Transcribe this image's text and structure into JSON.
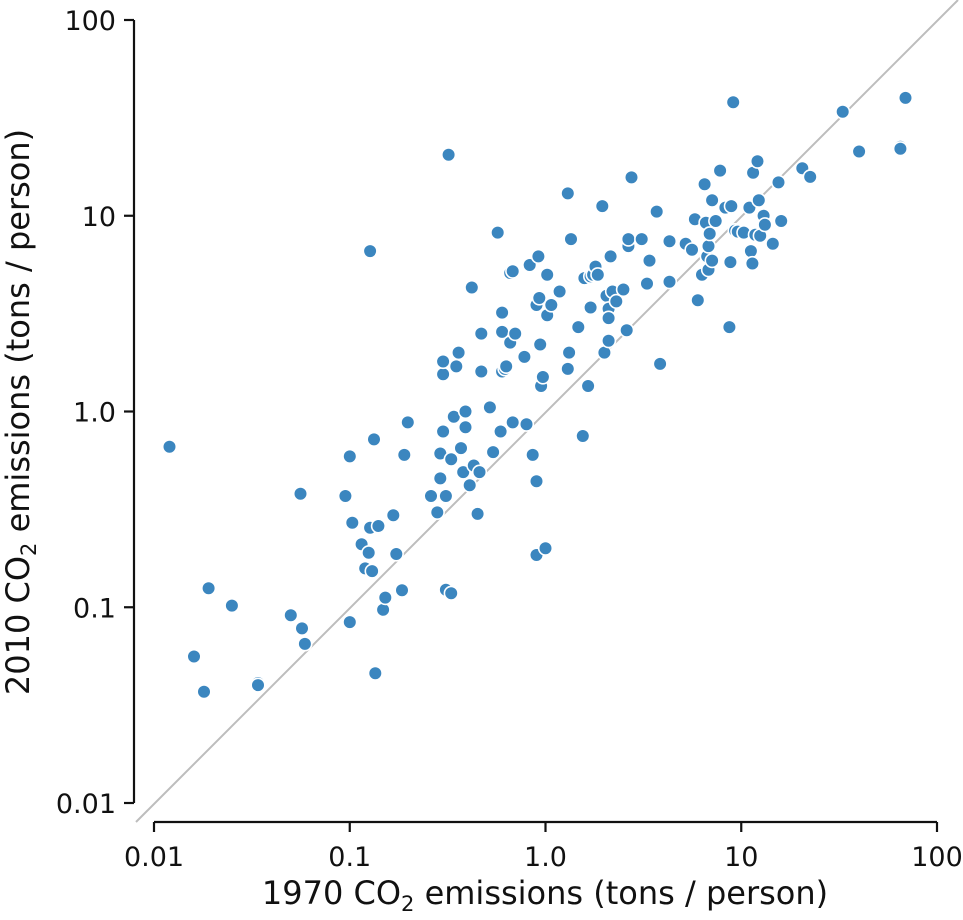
{
  "chart_data": {
    "type": "scatter",
    "title": "",
    "xlabel": {
      "pre": "1970 CO",
      "sub": "2",
      "post": " emissions (tons / person)"
    },
    "ylabel": {
      "pre": "2010 CO",
      "sub": "2",
      "post": " emissions (tons / person)"
    },
    "xscale": "log",
    "yscale": "log",
    "xlim": [
      0.01,
      100
    ],
    "ylim": [
      0.01,
      100
    ],
    "grid": false,
    "x_ticks": [
      0.01,
      0.1,
      1,
      10,
      100
    ],
    "x_tick_labels": [
      "0.01",
      "0.1",
      "1.0",
      "10",
      "100"
    ],
    "y_ticks": [
      0.01,
      0.1,
      1,
      10,
      100
    ],
    "y_tick_labels": [
      "0.01",
      "0.1",
      "1.0",
      "10",
      "100"
    ],
    "reference_line": {
      "type": "identity",
      "label": "y = x",
      "color": "#bdbdbd"
    },
    "point_color": "#3b86bf",
    "points": [
      [
        0.012,
        0.66
      ],
      [
        0.016,
        0.056
      ],
      [
        0.018,
        0.037
      ],
      [
        0.019,
        0.125
      ],
      [
        0.025,
        0.102
      ],
      [
        0.034,
        0.041
      ],
      [
        0.034,
        0.04
      ],
      [
        0.05,
        0.091
      ],
      [
        0.056,
        0.38
      ],
      [
        0.057,
        0.078
      ],
      [
        0.059,
        0.065
      ],
      [
        0.095,
        0.37
      ],
      [
        0.1,
        0.59
      ],
      [
        0.1,
        0.084
      ],
      [
        0.103,
        0.27
      ],
      [
        0.115,
        0.21
      ],
      [
        0.12,
        0.158
      ],
      [
        0.125,
        0.19
      ],
      [
        0.127,
        0.255
      ],
      [
        0.127,
        6.6
      ],
      [
        0.13,
        0.153
      ],
      [
        0.133,
        0.72
      ],
      [
        0.135,
        0.046
      ],
      [
        0.14,
        0.26
      ],
      [
        0.148,
        0.097
      ],
      [
        0.152,
        0.112
      ],
      [
        0.167,
        0.295
      ],
      [
        0.173,
        0.187
      ],
      [
        0.185,
        0.122
      ],
      [
        0.19,
        0.6
      ],
      [
        0.198,
        0.88
      ],
      [
        0.26,
        0.37
      ],
      [
        0.28,
        0.305
      ],
      [
        0.29,
        0.455
      ],
      [
        0.29,
        0.61
      ],
      [
        0.3,
        0.79
      ],
      [
        0.3,
        1.55
      ],
      [
        0.3,
        1.8
      ],
      [
        0.31,
        0.37
      ],
      [
        0.31,
        0.123
      ],
      [
        0.32,
        20.5
      ],
      [
        0.33,
        0.118
      ],
      [
        0.33,
        0.57
      ],
      [
        0.34,
        0.94
      ],
      [
        0.35,
        1.7
      ],
      [
        0.36,
        2.0
      ],
      [
        0.37,
        0.65
      ],
      [
        0.38,
        0.49
      ],
      [
        0.39,
        0.83
      ],
      [
        0.39,
        1.0
      ],
      [
        0.41,
        0.42
      ],
      [
        0.42,
        4.3
      ],
      [
        0.43,
        0.53
      ],
      [
        0.45,
        0.3
      ],
      [
        0.46,
        0.49
      ],
      [
        0.47,
        1.6
      ],
      [
        0.47,
        2.5
      ],
      [
        0.52,
        1.05
      ],
      [
        0.54,
        0.62
      ],
      [
        0.57,
        8.2
      ],
      [
        0.59,
        0.79
      ],
      [
        0.6,
        3.2
      ],
      [
        0.6,
        2.55
      ],
      [
        0.6,
        1.6
      ],
      [
        0.62,
        1.65
      ],
      [
        0.63,
        1.7
      ],
      [
        0.66,
        5.1
      ],
      [
        0.66,
        2.25
      ],
      [
        0.68,
        0.88
      ],
      [
        0.68,
        5.2
      ],
      [
        0.7,
        2.5
      ],
      [
        0.78,
        1.9
      ],
      [
        0.8,
        0.86
      ],
      [
        0.83,
        5.6
      ],
      [
        0.86,
        0.6
      ],
      [
        0.9,
        3.5
      ],
      [
        0.9,
        0.44
      ],
      [
        0.9,
        0.185
      ],
      [
        0.92,
        6.2
      ],
      [
        0.93,
        3.8
      ],
      [
        0.94,
        2.2
      ],
      [
        0.95,
        1.35
      ],
      [
        0.97,
        1.5
      ],
      [
        1.0,
        0.2
      ],
      [
        1.02,
        3.1
      ],
      [
        1.02,
        5.0
      ],
      [
        1.07,
        3.5
      ],
      [
        1.18,
        4.1
      ],
      [
        1.3,
        1.65
      ],
      [
        1.3,
        13.0
      ],
      [
        1.32,
        2.0
      ],
      [
        1.35,
        7.6
      ],
      [
        1.47,
        2.7
      ],
      [
        1.55,
        0.75
      ],
      [
        1.58,
        4.8
      ],
      [
        1.65,
        1.35
      ],
      [
        1.7,
        3.4
      ],
      [
        1.7,
        4.9
      ],
      [
        1.75,
        5.0
      ],
      [
        1.8,
        5.5
      ],
      [
        1.85,
        5.0
      ],
      [
        1.95,
        11.2
      ],
      [
        2.0,
        2.0
      ],
      [
        2.05,
        3.9
      ],
      [
        2.1,
        3.35
      ],
      [
        2.1,
        3.0
      ],
      [
        2.1,
        2.3
      ],
      [
        2.15,
        6.2
      ],
      [
        2.2,
        4.1
      ],
      [
        2.3,
        3.65
      ],
      [
        2.5,
        4.2
      ],
      [
        2.6,
        2.6
      ],
      [
        2.65,
        7.0
      ],
      [
        2.65,
        7.6
      ],
      [
        2.75,
        15.7
      ],
      [
        3.1,
        7.6
      ],
      [
        3.3,
        4.5
      ],
      [
        3.4,
        5.9
      ],
      [
        3.7,
        10.5
      ],
      [
        3.85,
        1.75
      ],
      [
        4.3,
        4.6
      ],
      [
        4.3,
        7.4
      ],
      [
        5.2,
        7.2
      ],
      [
        5.6,
        6.7
      ],
      [
        5.8,
        9.6
      ],
      [
        6.0,
        3.7
      ],
      [
        6.3,
        5.0
      ],
      [
        6.5,
        14.5
      ],
      [
        6.6,
        9.2
      ],
      [
        6.7,
        6.2
      ],
      [
        6.8,
        5.3
      ],
      [
        6.8,
        7.0
      ],
      [
        6.9,
        8.1
      ],
      [
        7.1,
        12.0
      ],
      [
        7.1,
        5.9
      ],
      [
        7.4,
        9.4
      ],
      [
        7.8,
        17.0
      ],
      [
        8.3,
        11.0
      ],
      [
        8.7,
        2.7
      ],
      [
        8.8,
        5.8
      ],
      [
        8.9,
        11.2
      ],
      [
        9.1,
        38.0
      ],
      [
        9.3,
        8.4
      ],
      [
        9.6,
        8.3
      ],
      [
        10.3,
        8.2
      ],
      [
        11.0,
        11.0
      ],
      [
        11.2,
        6.6
      ],
      [
        11.4,
        5.7
      ],
      [
        11.5,
        16.6
      ],
      [
        11.8,
        8.0
      ],
      [
        12.1,
        19.0
      ],
      [
        12.3,
        12.0
      ],
      [
        12.5,
        7.9
      ],
      [
        13.0,
        10.0
      ],
      [
        13.2,
        9.0
      ],
      [
        14.5,
        7.2
      ],
      [
        15.5,
        14.8
      ],
      [
        16.0,
        9.4
      ],
      [
        20.5,
        17.5
      ],
      [
        22.5,
        15.8
      ],
      [
        33.0,
        34.0
      ],
      [
        40.0,
        21.3
      ],
      [
        65.0,
        22.5
      ],
      [
        65.0,
        22.0
      ],
      [
        69.0,
        40.0
      ]
    ]
  }
}
